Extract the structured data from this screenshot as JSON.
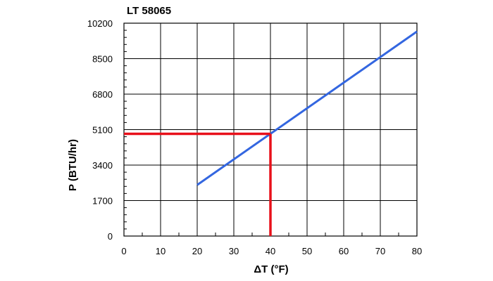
{
  "chart_data": {
    "type": "line",
    "title": "LT 58065",
    "xlabel": "ΔT (°F)",
    "ylabel": "P (BTU/hr)",
    "xlim": [
      0,
      80
    ],
    "ylim": [
      0,
      10200
    ],
    "x_ticks": [
      0,
      10,
      20,
      30,
      40,
      50,
      60,
      70,
      80
    ],
    "y_ticks": [
      0,
      1700,
      3400,
      5100,
      6800,
      8500,
      10200
    ],
    "grid": true,
    "minor_ticks": true,
    "series": [
      {
        "x": [
          20,
          80
        ],
        "y": [
          2450,
          9800
        ],
        "color": "#3366e0"
      }
    ],
    "annotations": [
      {
        "kind": "reference-lines",
        "x": 40,
        "y": 4900,
        "color": "#e8101a"
      }
    ]
  }
}
